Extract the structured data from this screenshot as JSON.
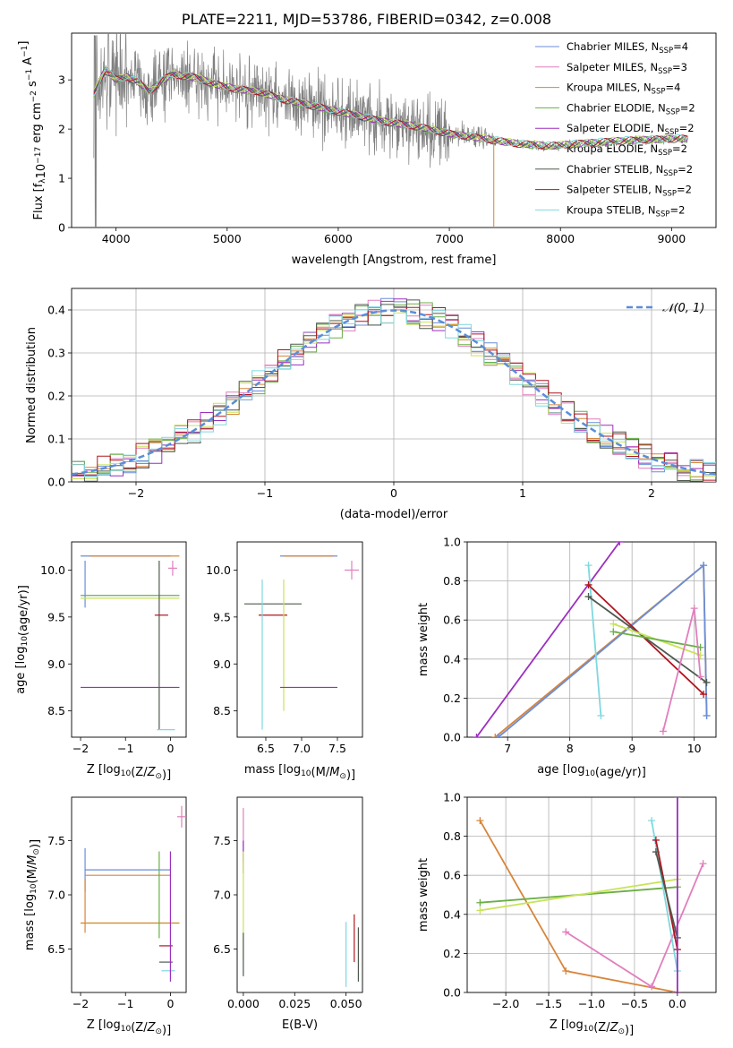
{
  "figure": {
    "title": "PLATE=2211, MJD=53786, FIBERID=0342, z=0.008"
  },
  "colors": {
    "Chabrier MILES": "#6a8ed8",
    "Salpeter MILES": "#e07fbd",
    "Kroupa MILES": "#d8853a",
    "Chabrier ELODIE": "#6aaf46",
    "Salpeter ELODIE": "#9b2fbf",
    "Kroupa ELODIE": "#c9e35a",
    "Chabrier STELIB": "#4f5a4f",
    "Salpeter STELIB": "#b0151f",
    "Kroupa STELIB": "#7fd8df",
    "data": "#808080",
    "normal": "#5b8dd8"
  },
  "chart_data": [
    {
      "id": "spectrum",
      "type": "line",
      "xlabel": "wavelength [Angstrom, rest frame]",
      "ylabel_parts": [
        "Flux [f",
        "λ",
        "10",
        "−17",
        " erg cm",
        "−2",
        " s",
        "−1",
        " A",
        "−1",
        "]"
      ],
      "xlim": [
        3600,
        9400
      ],
      "ylim": [
        0,
        3.95
      ],
      "xticks": [
        4000,
        5000,
        6000,
        7000,
        8000,
        9000
      ],
      "yticks": [
        0,
        1,
        2,
        3
      ],
      "data_x_range": [
        3800,
        9150
      ],
      "legend_loc": "upper right",
      "legend": [
        {
          "name": "Chabrier MILES",
          "suffix": "4"
        },
        {
          "name": "Salpeter MILES",
          "suffix": "3"
        },
        {
          "name": "Kroupa MILES",
          "suffix": "4"
        },
        {
          "name": "Chabrier ELODIE",
          "suffix": "2"
        },
        {
          "name": "Salpeter ELODIE",
          "suffix": "2"
        },
        {
          "name": "Kroupa ELODIE",
          "suffix": "2"
        },
        {
          "name": "Chabrier STELIB",
          "suffix": "2"
        },
        {
          "name": "Salpeter STELIB",
          "suffix": "2"
        },
        {
          "name": "Kroupa STELIB",
          "suffix": "2"
        }
      ],
      "model_continuum": {
        "x": [
          3800,
          3900,
          4000,
          4100,
          4200,
          4300,
          4400,
          4500,
          4700,
          4900,
          5100,
          5300,
          5500,
          5800,
          6100,
          6400,
          6700,
          7000,
          7300,
          7600,
          7900,
          8200,
          8500,
          8800,
          9100
        ],
        "y": [
          2.7,
          3.2,
          3.0,
          3.05,
          2.95,
          2.75,
          2.95,
          3.1,
          3.05,
          2.9,
          2.8,
          2.75,
          2.6,
          2.45,
          2.3,
          2.15,
          2.05,
          1.9,
          1.8,
          1.7,
          1.65,
          1.7,
          1.75,
          1.78,
          1.8
        ]
      }
    },
    {
      "id": "residuals",
      "type": "histogram",
      "xlabel": "(data-model)/error",
      "ylabel": "Normed distribution",
      "xlim": [
        -2.5,
        2.5
      ],
      "ylim": [
        0,
        0.45
      ],
      "xticks": [
        -2,
        -1,
        0,
        1,
        2
      ],
      "yticks": [
        0.0,
        0.1,
        0.2,
        0.3,
        0.4
      ],
      "grid": true,
      "bin_width": 0.1,
      "legend": [
        "𝒩(0, 1)"
      ],
      "legend_loc": "upper right",
      "normal": {
        "mean": 0,
        "sigma": 1
      }
    },
    {
      "id": "age_vs_Z",
      "type": "errorbar",
      "xlabel": "Z [log10(Z/Z⊙)]",
      "ylabel": "age  [log10(age/yr)]",
      "xlim": [
        -2.2,
        0.35
      ],
      "ylim": [
        8.22,
        10.3
      ],
      "xticks": [
        -2,
        -1,
        0
      ],
      "yticks": [
        8.5,
        9.0,
        9.5,
        10.0
      ],
      "points": [
        {
          "model": "Chabrier MILES",
          "x": -1.0,
          "xerr": 1.0,
          "y": 10.15,
          "yerr": 0.0
        },
        {
          "model": "Kroupa MILES",
          "x": -0.8,
          "xerr": 1.0,
          "y": 10.15,
          "yerr": 0.0
        },
        {
          "model": "Chabrier MILES",
          "x": -1.9,
          "xerr": 0.0,
          "y": 9.85,
          "yerr": 0.25
        },
        {
          "model": "Chabrier ELODIE",
          "x": -0.9,
          "xerr": 1.1,
          "y": 9.73,
          "yerr": 0.0
        },
        {
          "model": "Kroupa ELODIE",
          "x": -0.9,
          "xerr": 1.1,
          "y": 9.7,
          "yerr": 0.0
        },
        {
          "model": "Salpeter ELODIE",
          "x": -0.9,
          "xerr": 1.1,
          "y": 8.75,
          "yerr": 0.0
        },
        {
          "model": "Chabrier STELIB",
          "x": -0.25,
          "xerr": 0.0,
          "y": 9.2,
          "yerr": 0.9
        },
        {
          "model": "Salpeter STELIB",
          "x": -0.2,
          "xerr": 0.15,
          "y": 9.52,
          "yerr": 0.0
        },
        {
          "model": "Kroupa STELIB",
          "x": -0.1,
          "xerr": 0.2,
          "y": 8.3,
          "yerr": 0.0
        },
        {
          "model": "Salpeter MILES",
          "x": 0.05,
          "xerr": 0.1,
          "y": 10.02,
          "yerr": 0.08
        }
      ]
    },
    {
      "id": "age_vs_mass",
      "type": "errorbar",
      "xlabel": "mass [log10(M/M⊙)]",
      "xlim": [
        6.1,
        7.85
      ],
      "ylim": [
        8.22,
        10.3
      ],
      "xticks": [
        6.5,
        7.0,
        7.5
      ],
      "yticks": [
        8.5,
        9.0,
        9.5,
        10.0
      ],
      "points": [
        {
          "model": "Chabrier MILES",
          "x": 7.1,
          "xerr": 0.4,
          "y": 10.15,
          "yerr": 0.0
        },
        {
          "model": "Kroupa MILES",
          "x": 7.1,
          "xerr": 0.35,
          "y": 10.15,
          "yerr": 0.0
        },
        {
          "model": "Salpeter MILES",
          "x": 7.7,
          "xerr": 0.1,
          "y": 10.0,
          "yerr": 0.1
        },
        {
          "model": "Chabrier STELIB",
          "x": 6.6,
          "xerr": 0.4,
          "y": 9.64,
          "yerr": 0.0
        },
        {
          "model": "Salpeter STELIB",
          "x": 6.6,
          "xerr": 0.2,
          "y": 9.52,
          "yerr": 0.0
        },
        {
          "model": "Kroupa ELODIE",
          "x": 6.75,
          "xerr": 0.0,
          "y": 9.2,
          "yerr": 0.7
        },
        {
          "model": "Salpeter ELODIE",
          "x": 7.1,
          "xerr": 0.4,
          "y": 8.75,
          "yerr": 0.0
        },
        {
          "model": "Kroupa STELIB",
          "x": 6.45,
          "xerr": 0.0,
          "y": 9.1,
          "yerr": 0.8
        }
      ]
    },
    {
      "id": "weight_vs_age",
      "type": "line",
      "xlabel": "age  [log10(age/yr)]",
      "ylabel": "mass weight",
      "xlim": [
        6.35,
        10.35
      ],
      "ylim": [
        0,
        1.0
      ],
      "xticks": [
        7,
        8,
        9,
        10
      ],
      "yticks": [
        0.0,
        0.2,
        0.4,
        0.6,
        0.8,
        1.0
      ],
      "grid": true,
      "series": [
        {
          "model": "Salpeter ELODIE",
          "x": [
            6.5,
            8.8
          ],
          "y": [
            0.0,
            1.0
          ]
        },
        {
          "model": "Kroupa MILES",
          "x": [
            6.8,
            10.15,
            10.2
          ],
          "y": [
            0.0,
            0.88,
            0.11
          ]
        },
        {
          "model": "Chabrier MILES",
          "x": [
            6.85,
            10.15,
            10.2
          ],
          "y": [
            0.0,
            0.88,
            0.11
          ]
        },
        {
          "model": "Kroupa STELIB",
          "x": [
            8.3,
            8.5
          ],
          "y": [
            0.88,
            0.11
          ]
        },
        {
          "model": "Salpeter STELIB",
          "x": [
            8.3,
            10.15
          ],
          "y": [
            0.78,
            0.22
          ]
        },
        {
          "model": "Chabrier STELIB",
          "x": [
            8.3,
            10.2
          ],
          "y": [
            0.72,
            0.28
          ]
        },
        {
          "model": "Kroupa ELODIE",
          "x": [
            8.7,
            10.1
          ],
          "y": [
            0.58,
            0.42
          ]
        },
        {
          "model": "Chabrier ELODIE",
          "x": [
            8.7,
            10.1
          ],
          "y": [
            0.54,
            0.46
          ]
        },
        {
          "model": "Salpeter MILES",
          "x": [
            9.5,
            10.0,
            10.1
          ],
          "y": [
            0.03,
            0.66,
            0.31
          ]
        }
      ]
    },
    {
      "id": "mass_vs_Z",
      "type": "errorbar",
      "xlabel": "Z [log10(Z/Z⊙)]",
      "ylabel": "mass [log10(M/M⊙)]",
      "xlim": [
        -2.2,
        0.35
      ],
      "ylim": [
        6.1,
        7.9
      ],
      "xticks": [
        -2,
        -1,
        0
      ],
      "yticks": [
        6.5,
        7.0,
        7.5
      ],
      "points": [
        {
          "model": "Chabrier MILES",
          "x": -0.95,
          "xerr": 0.95,
          "y": 7.23,
          "yerr": 0.0
        },
        {
          "model": "Chabrier MILES",
          "x": -1.9,
          "xerr": 0.0,
          "y": 7.23,
          "yerr": 0.2
        },
        {
          "model": "Kroupa MILES",
          "x": -0.95,
          "xerr": 0.95,
          "y": 7.18,
          "yerr": 0.0
        },
        {
          "model": "Kroupa MILES",
          "x": -1.9,
          "xerr": 0.0,
          "y": 6.9,
          "yerr": 0.25
        },
        {
          "model": "Kroupa ELODIE",
          "x": -0.9,
          "xerr": 1.1,
          "y": 6.74,
          "yerr": 0.0
        },
        {
          "model": "Kroupa MILES",
          "x": -0.9,
          "xerr": 1.1,
          "y": 6.74,
          "yerr": 0.0
        },
        {
          "model": "Chabrier ELODIE",
          "x": -0.25,
          "xerr": 0.0,
          "y": 7.0,
          "yerr": 0.4
        },
        {
          "model": "Salpeter STELIB",
          "x": -0.1,
          "xerr": 0.15,
          "y": 6.53,
          "yerr": 0.0
        },
        {
          "model": "Chabrier STELIB",
          "x": -0.1,
          "xerr": 0.15,
          "y": 6.38,
          "yerr": 0.0
        },
        {
          "model": "Kroupa STELIB",
          "x": -0.05,
          "xerr": 0.15,
          "y": 6.3,
          "yerr": 0.0
        },
        {
          "model": "Salpeter ELODIE",
          "x": 0.0,
          "xerr": 0.0,
          "y": 6.8,
          "yerr": 0.6
        },
        {
          "model": "Salpeter MILES",
          "x": 0.25,
          "xerr": 0.1,
          "y": 7.72,
          "yerr": 0.1
        }
      ]
    },
    {
      "id": "mass_vs_ebv",
      "type": "errorbar",
      "xlabel": "E(B-V)",
      "xlim": [
        -0.003,
        0.058
      ],
      "ylim": [
        6.1,
        7.9
      ],
      "xticks": [
        0.0,
        0.025,
        0.05
      ],
      "xtick_labels": [
        "0.000",
        "0.025",
        "0.050"
      ],
      "yticks": [
        6.5,
        7.0,
        7.5
      ],
      "points": [
        {
          "model": "Salpeter MILES",
          "x": 0.0,
          "xerr": 0.0,
          "y": 7.55,
          "yerr": 0.25
        },
        {
          "model": "Salpeter ELODIE",
          "x": 0.0,
          "xerr": 0.0,
          "y": 7.35,
          "yerr": 0.15
        },
        {
          "model": "Kroupa ELODIE",
          "x": 0.0,
          "xerr": 0.0,
          "y": 6.9,
          "yerr": 0.5
        },
        {
          "model": "Chabrier STELIB",
          "x": 0.0,
          "xerr": 0.0,
          "y": 6.45,
          "yerr": 0.2
        },
        {
          "model": "Kroupa STELIB",
          "x": 0.05,
          "xerr": 0.0,
          "y": 6.45,
          "yerr": 0.3
        },
        {
          "model": "Salpeter STELIB",
          "x": 0.054,
          "xerr": 0.0,
          "y": 6.6,
          "yerr": 0.22
        },
        {
          "model": "Chabrier STELIB",
          "x": 0.056,
          "xerr": 0.0,
          "y": 6.45,
          "yerr": 0.25
        }
      ]
    },
    {
      "id": "weight_vs_Z",
      "type": "line",
      "xlabel": "Z [log10(Z/Z⊙)]",
      "ylabel": "mass weight",
      "xlim": [
        -2.45,
        0.45
      ],
      "ylim": [
        0,
        1.0
      ],
      "xticks": [
        -2.0,
        -1.5,
        -1.0,
        -0.5,
        0.0
      ],
      "yticks": [
        0.0,
        0.2,
        0.4,
        0.6,
        0.8,
        1.0
      ],
      "grid": true,
      "series": [
        {
          "model": "Kroupa MILES",
          "x": [
            -2.3,
            -1.3,
            0.0
          ],
          "y": [
            0.88,
            0.11,
            0.0
          ]
        },
        {
          "model": "Chabrier ELODIE",
          "x": [
            -2.3,
            0.0
          ],
          "y": [
            0.46,
            0.54
          ]
        },
        {
          "model": "Kroupa ELODIE",
          "x": [
            -2.3,
            0.0
          ],
          "y": [
            0.42,
            0.58
          ]
        },
        {
          "model": "Salpeter MILES",
          "x": [
            -1.3,
            -0.3,
            0.3
          ],
          "y": [
            0.31,
            0.03,
            0.66
          ]
        },
        {
          "model": "Kroupa STELIB",
          "x": [
            -0.3,
            0.0
          ],
          "y": [
            0.88,
            0.11
          ]
        },
        {
          "model": "Salpeter STELIB",
          "x": [
            -0.25,
            0.0
          ],
          "y": [
            0.78,
            0.22
          ]
        },
        {
          "model": "Chabrier STELIB",
          "x": [
            -0.25,
            0.0
          ],
          "y": [
            0.72,
            0.28
          ]
        },
        {
          "model": "Salpeter ELODIE",
          "x": [
            0.0,
            0.0
          ],
          "y": [
            0.0,
            1.0
          ]
        }
      ]
    }
  ]
}
